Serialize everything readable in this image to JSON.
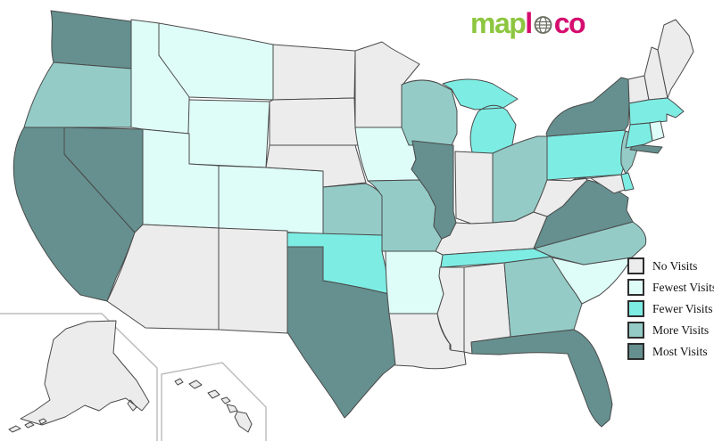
{
  "logo": {
    "green_text": "map",
    "pink_text_1": "l",
    "pink_text_2": "co",
    "green_color": "#8dc63f",
    "pink_color": "#d40d6e"
  },
  "colors": {
    "no": "#ececec",
    "fewest": "#dffdf8",
    "fewer": "#7dede4",
    "more": "#94cbc7",
    "most": "#65908f",
    "border": "#4a4a4a",
    "inset_border": "#bdbdbd",
    "background": "#ffffff"
  },
  "legend": {
    "items": [
      {
        "label": "No Visits",
        "category": "no"
      },
      {
        "label": "Fewest Visits",
        "category": "fewest"
      },
      {
        "label": "Fewer Visits",
        "category": "fewer"
      },
      {
        "label": "More Visits",
        "category": "more"
      },
      {
        "label": "Most Visits",
        "category": "most"
      }
    ]
  },
  "map": {
    "states": [
      {
        "id": "WA",
        "name": "Washington",
        "category": "most"
      },
      {
        "id": "OR",
        "name": "Oregon",
        "category": "more"
      },
      {
        "id": "CA",
        "name": "California",
        "category": "most"
      },
      {
        "id": "NV",
        "name": "Nevada",
        "category": "most"
      },
      {
        "id": "ID",
        "name": "Idaho",
        "category": "fewest"
      },
      {
        "id": "MT",
        "name": "Montana",
        "category": "fewest"
      },
      {
        "id": "WY",
        "name": "Wyoming",
        "category": "fewest"
      },
      {
        "id": "UT",
        "name": "Utah",
        "category": "fewest"
      },
      {
        "id": "CO",
        "name": "Colorado",
        "category": "fewest"
      },
      {
        "id": "AZ",
        "name": "Arizona",
        "category": "no"
      },
      {
        "id": "NM",
        "name": "New Mexico",
        "category": "no"
      },
      {
        "id": "ND",
        "name": "North Dakota",
        "category": "no"
      },
      {
        "id": "SD",
        "name": "South Dakota",
        "category": "no"
      },
      {
        "id": "NE",
        "name": "Nebraska",
        "category": "no"
      },
      {
        "id": "KS",
        "name": "Kansas",
        "category": "more"
      },
      {
        "id": "OK",
        "name": "Oklahoma",
        "category": "fewer"
      },
      {
        "id": "TX",
        "name": "Texas",
        "category": "most"
      },
      {
        "id": "MN",
        "name": "Minnesota",
        "category": "no"
      },
      {
        "id": "IA",
        "name": "Iowa",
        "category": "fewest"
      },
      {
        "id": "MO",
        "name": "Missouri",
        "category": "more"
      },
      {
        "id": "AR",
        "name": "Arkansas",
        "category": "fewest"
      },
      {
        "id": "LA",
        "name": "Louisiana",
        "category": "no"
      },
      {
        "id": "WI",
        "name": "Wisconsin",
        "category": "more"
      },
      {
        "id": "IL",
        "name": "Illinois",
        "category": "most"
      },
      {
        "id": "MI",
        "name": "Michigan",
        "category": "fewer"
      },
      {
        "id": "IN",
        "name": "Indiana",
        "category": "no"
      },
      {
        "id": "OH",
        "name": "Ohio",
        "category": "more"
      },
      {
        "id": "KY",
        "name": "Kentucky",
        "category": "no"
      },
      {
        "id": "TN",
        "name": "Tennessee",
        "category": "fewer"
      },
      {
        "id": "MS",
        "name": "Mississippi",
        "category": "no"
      },
      {
        "id": "AL",
        "name": "Alabama",
        "category": "no"
      },
      {
        "id": "GA",
        "name": "Georgia",
        "category": "more"
      },
      {
        "id": "FL",
        "name": "Florida",
        "category": "most"
      },
      {
        "id": "SC",
        "name": "South Carolina",
        "category": "fewest"
      },
      {
        "id": "NC",
        "name": "North Carolina",
        "category": "more"
      },
      {
        "id": "VA",
        "name": "Virginia",
        "category": "most"
      },
      {
        "id": "WV",
        "name": "West Virginia",
        "category": "no"
      },
      {
        "id": "MD",
        "name": "Maryland",
        "category": "no"
      },
      {
        "id": "DE",
        "name": "Delaware",
        "category": "fewer"
      },
      {
        "id": "PA",
        "name": "Pennsylvania",
        "category": "fewer"
      },
      {
        "id": "NJ",
        "name": "New Jersey",
        "category": "more"
      },
      {
        "id": "NY",
        "name": "New York",
        "category": "most"
      },
      {
        "id": "VT",
        "name": "Vermont",
        "category": "no"
      },
      {
        "id": "NH",
        "name": "New Hampshire",
        "category": "no"
      },
      {
        "id": "ME",
        "name": "Maine",
        "category": "no"
      },
      {
        "id": "MA",
        "name": "Massachusetts",
        "category": "fewer"
      },
      {
        "id": "CT",
        "name": "Connecticut",
        "category": "fewer"
      },
      {
        "id": "RI",
        "name": "Rhode Island",
        "category": "fewest"
      },
      {
        "id": "AK",
        "name": "Alaska",
        "category": "no"
      },
      {
        "id": "HI",
        "name": "Hawaii",
        "category": "no"
      }
    ]
  }
}
